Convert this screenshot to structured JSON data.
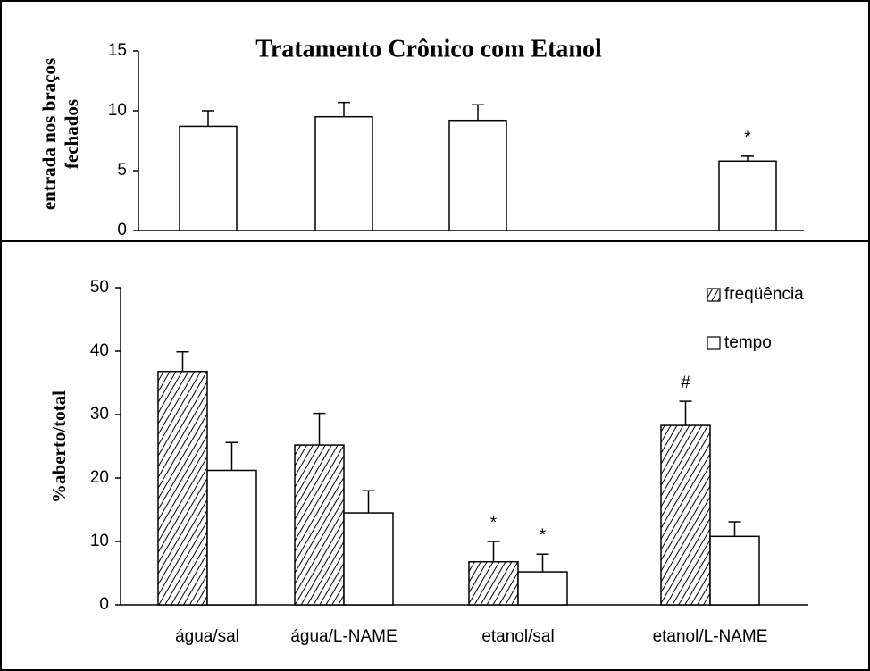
{
  "chart_data": [
    {
      "type": "bar",
      "title": "Tratamento Crônico com Etanol",
      "ylabel": [
        "entrada nos braços",
        "fechados"
      ],
      "values": [
        8.7,
        9.5,
        9.2,
        5.8
      ],
      "errors": [
        1.3,
        1.2,
        1.3,
        0.4
      ],
      "color": "#ffffff",
      "ylim": [
        0,
        15
      ],
      "yticks": [
        0,
        5,
        10,
        15
      ],
      "annotations": [
        {
          "text": "*",
          "index": 3
        }
      ]
    },
    {
      "type": "bar",
      "ylabel": "%aberto/total",
      "categories": [
        "água/sal",
        "água/L-NAME",
        "etanol/sal",
        "etanol/L-NAME"
      ],
      "series": [
        {
          "name": "freqüência",
          "color": "#ffffff",
          "hatch": true,
          "values": [
            36.8,
            25.2,
            6.8,
            28.3
          ],
          "errors": [
            3.1,
            5.0,
            3.2,
            3.8
          ]
        },
        {
          "name": "tempo",
          "color": "#ffffff",
          "hatch": false,
          "values": [
            21.2,
            14.5,
            5.2,
            10.8
          ],
          "errors": [
            4.4,
            3.5,
            2.8,
            2.3
          ]
        }
      ],
      "ylim": [
        0,
        50
      ],
      "yticks": [
        0,
        10,
        20,
        30,
        40,
        50
      ],
      "legend": "upper right",
      "annotations": [
        {
          "text": "*",
          "series": 0,
          "index": 2
        },
        {
          "text": "*",
          "series": 1,
          "index": 2
        },
        {
          "text": "#",
          "series": 0,
          "index": 3
        }
      ]
    }
  ]
}
